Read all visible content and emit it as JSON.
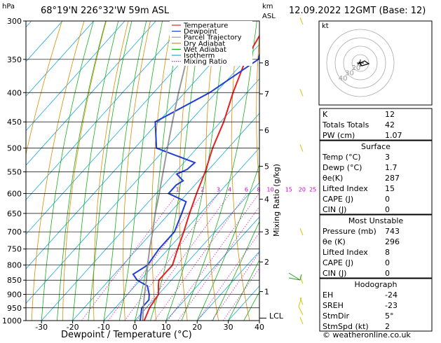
{
  "header": {
    "location": "68°19'N 226°32'W 59m ASL",
    "datetime": "12.09.2022 12GMT (Base: 12)"
  },
  "axes": {
    "left_unit": "hPa",
    "right_unit_km": "km",
    "right_unit_asl": "ASL",
    "xlabel": "Dewpoint / Temperature (°C)",
    "mixing_ratio_label": "Mixing Ratio (g/kg)",
    "lcl_label": "LCL"
  },
  "legend": {
    "items": [
      {
        "label": "Temperature",
        "color": "#e82020",
        "dotted": false
      },
      {
        "label": "Dewpoint",
        "color": "#1f3fd8",
        "dotted": false
      },
      {
        "label": "Parcel Trajectory",
        "color": "#999999",
        "dotted": false
      },
      {
        "label": "Dry Adiabat",
        "color": "#e08a00",
        "dotted": false
      },
      {
        "label": "Wet Adiabat",
        "color": "#1ab01a",
        "dotted": false
      },
      {
        "label": "Isotherm",
        "color": "#18a8e0",
        "dotted": false
      },
      {
        "label": "Mixing Ratio",
        "color": "#d020d0",
        "dotted": true
      }
    ]
  },
  "chart_data": {
    "type": "line",
    "title": "",
    "xlabel": "Dewpoint / Temperature (°C)",
    "ylabel": "hPa",
    "xlim": [
      -35,
      40
    ],
    "ylim": [
      1000,
      300
    ],
    "skew": "skew-T log-p",
    "x_ticks": [
      "-30",
      "-20",
      "-10",
      "0",
      "10",
      "20",
      "30",
      "40"
    ],
    "pressure_ticks": [
      "300",
      "350",
      "400",
      "450",
      "500",
      "550",
      "600",
      "650",
      "700",
      "750",
      "800",
      "850",
      "900",
      "950",
      "1000"
    ],
    "km_ticks": [
      {
        "label": "8",
        "p": 355
      },
      {
        "label": "7",
        "p": 402
      },
      {
        "label": "6",
        "p": 465
      },
      {
        "label": "5",
        "p": 538
      },
      {
        "label": "4",
        "p": 614
      },
      {
        "label": "3",
        "p": 700
      },
      {
        "label": "2",
        "p": 790
      },
      {
        "label": "1",
        "p": 890
      }
    ],
    "mixing_ratio_labels": [
      "1",
      "2",
      "3",
      "4",
      "6",
      "8",
      "10",
      "15",
      "20",
      "25"
    ],
    "mixing_ratio_values": [
      1,
      2,
      3,
      4,
      6,
      8,
      10,
      15,
      20,
      25
    ],
    "lcl_p": 990,
    "series": [
      {
        "name": "Temperature",
        "points": [
          [
            1000,
            3
          ],
          [
            950,
            1
          ],
          [
            925,
            0.5
          ],
          [
            900,
            0
          ],
          [
            870,
            -2.5
          ],
          [
            850,
            -4
          ],
          [
            800,
            -4
          ],
          [
            750,
            -7
          ],
          [
            700,
            -10
          ],
          [
            650,
            -13.5
          ],
          [
            600,
            -17
          ],
          [
            550,
            -20.5
          ],
          [
            500,
            -25
          ],
          [
            450,
            -29
          ],
          [
            400,
            -34.5
          ],
          [
            350,
            -40
          ],
          [
            300,
            -44
          ]
        ]
      },
      {
        "name": "Dewpoint",
        "points": [
          [
            1000,
            1.7
          ],
          [
            950,
            -1.5
          ],
          [
            920,
            -1.5
          ],
          [
            900,
            -3
          ],
          [
            870,
            -6
          ],
          [
            850,
            -11
          ],
          [
            830,
            -14
          ],
          [
            800,
            -12
          ],
          [
            750,
            -13
          ],
          [
            700,
            -13
          ],
          [
            650,
            -16
          ],
          [
            620,
            -18
          ],
          [
            600,
            -26
          ],
          [
            580,
            -26
          ],
          [
            570,
            -25
          ],
          [
            555,
            -29
          ],
          [
            545,
            -27
          ],
          [
            530,
            -26.5
          ],
          [
            500,
            -43
          ],
          [
            450,
            -51
          ],
          [
            400,
            -42
          ],
          [
            350,
            -36
          ],
          [
            330,
            -39
          ],
          [
            300,
            -43
          ]
        ]
      },
      {
        "name": "Parcel Trajectory",
        "points": [
          [
            1000,
            2.5
          ],
          [
            950,
            -1
          ],
          [
            900,
            -4.5
          ],
          [
            850,
            -8
          ],
          [
            800,
            -12
          ],
          [
            750,
            -16
          ],
          [
            700,
            -20
          ],
          [
            650,
            -24.5
          ],
          [
            600,
            -29
          ],
          [
            550,
            -34
          ],
          [
            500,
            -39.5
          ],
          [
            450,
            -45.5
          ],
          [
            400,
            -52
          ],
          [
            350,
            -59
          ],
          [
            300,
            -67
          ]
        ]
      }
    ]
  },
  "hodograph": {
    "label": "kt",
    "ring_labels": [
      "20",
      "30",
      "40"
    ]
  },
  "indices": {
    "top": [
      {
        "label": "K",
        "value": "12"
      },
      {
        "label": "Totals Totals",
        "value": "42"
      },
      {
        "label": "PW (cm)",
        "value": "1.07"
      }
    ],
    "surface": {
      "title": "Surface",
      "rows": [
        {
          "label": "Temp (°C)",
          "value": "3"
        },
        {
          "label": "Dewp (°C)",
          "value": "1.7"
        },
        {
          "label": "θe(K)",
          "value": "287"
        },
        {
          "label": "Lifted Index",
          "value": "15"
        },
        {
          "label": "CAPE (J)",
          "value": "0"
        },
        {
          "label": "CIN (J)",
          "value": "0"
        }
      ]
    },
    "most_unstable": {
      "title": "Most Unstable",
      "rows": [
        {
          "label": "Pressure (mb)",
          "value": "743"
        },
        {
          "label": "θe (K)",
          "value": "296"
        },
        {
          "label": "Lifted Index",
          "value": "8"
        },
        {
          "label": "CAPE (J)",
          "value": "0"
        },
        {
          "label": "CIN (J)",
          "value": "0"
        }
      ]
    },
    "hodograph_box": {
      "title": "Hodograph",
      "rows": [
        {
          "label": "EH",
          "value": "-24"
        },
        {
          "label": "SREH",
          "value": "-23"
        },
        {
          "label": "StmDir",
          "value": "5°"
        },
        {
          "label": "StmSpd (kt)",
          "value": "2"
        }
      ]
    }
  },
  "footer": {
    "copyright": "© weatheronline.co.uk"
  }
}
